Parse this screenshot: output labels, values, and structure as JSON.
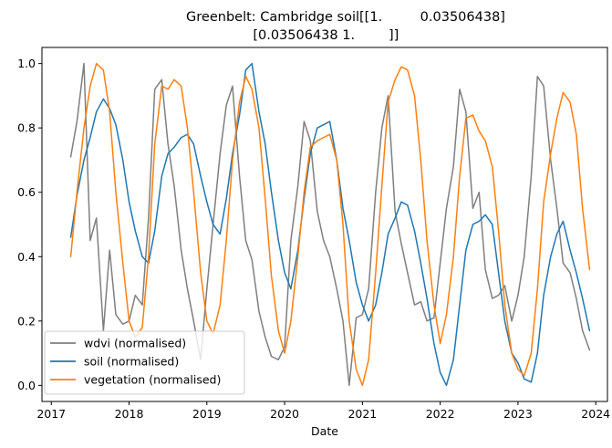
{
  "chart_data": {
    "type": "line",
    "title_lines": [
      "Greenbelt: Cambridge soil[[1.         0.03506438]",
      " [0.03506438 1.        ]]"
    ],
    "xlabel": "Date",
    "ylabel": "",
    "xlim": [
      2016.88,
      2024.15
    ],
    "ylim": [
      -0.05,
      1.05
    ],
    "x_ticks": [
      2017,
      2018,
      2019,
      2020,
      2021,
      2022,
      2023,
      2024
    ],
    "x_tick_labels": [
      "2017",
      "2018",
      "2019",
      "2020",
      "2021",
      "2022",
      "2023",
      "2024"
    ],
    "y_ticks": [
      0.0,
      0.2,
      0.4,
      0.6,
      0.8,
      1.0
    ],
    "y_tick_labels": [
      "0.0",
      "0.2",
      "0.4",
      "0.6",
      "0.8",
      "1.0"
    ],
    "grid": false,
    "legend_position": "lower left",
    "series": [
      {
        "name": "wdvi (normalised)",
        "color": "#7f7f7f",
        "x": [
          2017.25,
          2017.33,
          2017.42,
          2017.5,
          2017.58,
          2017.67,
          2017.75,
          2017.83,
          2017.92,
          2018.0,
          2018.08,
          2018.17,
          2018.25,
          2018.33,
          2018.42,
          2018.5,
          2018.58,
          2018.67,
          2018.75,
          2018.83,
          2018.92,
          2019.0,
          2019.08,
          2019.17,
          2019.25,
          2019.33,
          2019.42,
          2019.5,
          2019.58,
          2019.67,
          2019.75,
          2019.83,
          2019.92,
          2020.0,
          2020.08,
          2020.17,
          2020.25,
          2020.33,
          2020.42,
          2020.5,
          2020.58,
          2020.67,
          2020.75,
          2020.83,
          2020.92,
          2021.0,
          2021.08,
          2021.17,
          2021.25,
          2021.33,
          2021.42,
          2021.5,
          2021.58,
          2021.67,
          2021.75,
          2021.83,
          2021.92,
          2022.0,
          2022.08,
          2022.17,
          2022.25,
          2022.33,
          2022.42,
          2022.5,
          2022.58,
          2022.67,
          2022.75,
          2022.83,
          2022.92,
          2023.0,
          2023.08,
          2023.17,
          2023.25,
          2023.33,
          2023.42,
          2023.5,
          2023.58,
          2023.67,
          2023.75,
          2023.83,
          2023.92
        ],
        "y": [
          0.71,
          0.82,
          1.0,
          0.45,
          0.52,
          0.17,
          0.42,
          0.22,
          0.19,
          0.2,
          0.28,
          0.25,
          0.52,
          0.92,
          0.95,
          0.75,
          0.62,
          0.42,
          0.3,
          0.2,
          0.08,
          0.3,
          0.5,
          0.72,
          0.87,
          0.93,
          0.65,
          0.45,
          0.39,
          0.23,
          0.15,
          0.09,
          0.08,
          0.12,
          0.45,
          0.62,
          0.82,
          0.76,
          0.54,
          0.45,
          0.4,
          0.3,
          0.2,
          0.0,
          0.21,
          0.22,
          0.3,
          0.6,
          0.8,
          0.9,
          0.54,
          0.44,
          0.35,
          0.25,
          0.26,
          0.2,
          0.21,
          0.38,
          0.55,
          0.68,
          0.92,
          0.85,
          0.55,
          0.6,
          0.36,
          0.27,
          0.28,
          0.31,
          0.2,
          0.28,
          0.4,
          0.65,
          0.96,
          0.93,
          0.7,
          0.55,
          0.38,
          0.35,
          0.27,
          0.17,
          0.11
        ]
      },
      {
        "name": "soil (normalised)",
        "color": "#1f77b4",
        "x": [
          2017.25,
          2017.33,
          2017.42,
          2017.5,
          2017.58,
          2017.67,
          2017.75,
          2017.83,
          2017.92,
          2018.0,
          2018.08,
          2018.17,
          2018.25,
          2018.33,
          2018.42,
          2018.5,
          2018.58,
          2018.67,
          2018.75,
          2018.83,
          2018.92,
          2019.0,
          2019.08,
          2019.17,
          2019.25,
          2019.33,
          2019.42,
          2019.5,
          2019.58,
          2019.67,
          2019.75,
          2019.83,
          2019.92,
          2020.0,
          2020.08,
          2020.17,
          2020.25,
          2020.33,
          2020.42,
          2020.5,
          2020.58,
          2020.67,
          2020.75,
          2020.83,
          2020.92,
          2021.0,
          2021.08,
          2021.17,
          2021.25,
          2021.33,
          2021.42,
          2021.5,
          2021.58,
          2021.67,
          2021.75,
          2021.83,
          2021.92,
          2022.0,
          2022.08,
          2022.17,
          2022.25,
          2022.33,
          2022.42,
          2022.5,
          2022.58,
          2022.67,
          2022.75,
          2022.83,
          2022.92,
          2023.0,
          2023.08,
          2023.17,
          2023.25,
          2023.33,
          2023.42,
          2023.5,
          2023.58,
          2023.67,
          2023.75,
          2023.83,
          2023.92
        ],
        "y": [
          0.46,
          0.59,
          0.7,
          0.77,
          0.85,
          0.89,
          0.86,
          0.81,
          0.7,
          0.57,
          0.48,
          0.4,
          0.38,
          0.48,
          0.65,
          0.72,
          0.74,
          0.77,
          0.78,
          0.75,
          0.65,
          0.57,
          0.5,
          0.47,
          0.58,
          0.72,
          0.84,
          0.98,
          1.0,
          0.85,
          0.75,
          0.6,
          0.45,
          0.35,
          0.3,
          0.42,
          0.58,
          0.72,
          0.8,
          0.81,
          0.82,
          0.7,
          0.55,
          0.45,
          0.32,
          0.25,
          0.2,
          0.25,
          0.35,
          0.47,
          0.52,
          0.57,
          0.56,
          0.48,
          0.38,
          0.27,
          0.13,
          0.04,
          0.0,
          0.08,
          0.25,
          0.42,
          0.5,
          0.51,
          0.53,
          0.5,
          0.35,
          0.2,
          0.1,
          0.07,
          0.02,
          0.01,
          0.1,
          0.28,
          0.4,
          0.47,
          0.51,
          0.42,
          0.35,
          0.27,
          0.17
        ]
      },
      {
        "name": "vegetation (normalised)",
        "color": "#ff7f0e",
        "x": [
          2017.25,
          2017.33,
          2017.42,
          2017.5,
          2017.58,
          2017.67,
          2017.75,
          2017.83,
          2017.92,
          2018.0,
          2018.08,
          2018.17,
          2018.25,
          2018.33,
          2018.42,
          2018.5,
          2018.58,
          2018.67,
          2018.75,
          2018.83,
          2018.92,
          2019.0,
          2019.08,
          2019.17,
          2019.25,
          2019.33,
          2019.42,
          2019.5,
          2019.58,
          2019.67,
          2019.75,
          2019.83,
          2019.92,
          2020.0,
          2020.08,
          2020.17,
          2020.25,
          2020.33,
          2020.42,
          2020.5,
          2020.58,
          2020.67,
          2020.75,
          2020.83,
          2020.92,
          2021.0,
          2021.08,
          2021.17,
          2021.25,
          2021.33,
          2021.42,
          2021.5,
          2021.58,
          2021.67,
          2021.75,
          2021.83,
          2021.92,
          2022.0,
          2022.08,
          2022.17,
          2022.25,
          2022.33,
          2022.42,
          2022.5,
          2022.58,
          2022.67,
          2022.75,
          2022.83,
          2022.92,
          2023.0,
          2023.08,
          2023.17,
          2023.25,
          2023.33,
          2023.42,
          2023.5,
          2023.58,
          2023.67,
          2023.75,
          2023.83,
          2023.92
        ],
        "y": [
          0.4,
          0.6,
          0.8,
          0.93,
          1.0,
          0.98,
          0.85,
          0.6,
          0.38,
          0.2,
          0.15,
          0.18,
          0.4,
          0.75,
          0.93,
          0.92,
          0.95,
          0.93,
          0.8,
          0.6,
          0.35,
          0.2,
          0.16,
          0.25,
          0.45,
          0.7,
          0.88,
          0.96,
          0.92,
          0.8,
          0.58,
          0.34,
          0.17,
          0.1,
          0.2,
          0.4,
          0.6,
          0.74,
          0.76,
          0.77,
          0.78,
          0.7,
          0.5,
          0.2,
          0.05,
          0.0,
          0.08,
          0.35,
          0.62,
          0.88,
          0.95,
          0.99,
          0.98,
          0.9,
          0.7,
          0.45,
          0.25,
          0.13,
          0.22,
          0.4,
          0.65,
          0.83,
          0.84,
          0.79,
          0.76,
          0.68,
          0.48,
          0.25,
          0.1,
          0.05,
          0.03,
          0.1,
          0.3,
          0.57,
          0.72,
          0.83,
          0.91,
          0.88,
          0.78,
          0.55,
          0.36
        ]
      }
    ]
  }
}
